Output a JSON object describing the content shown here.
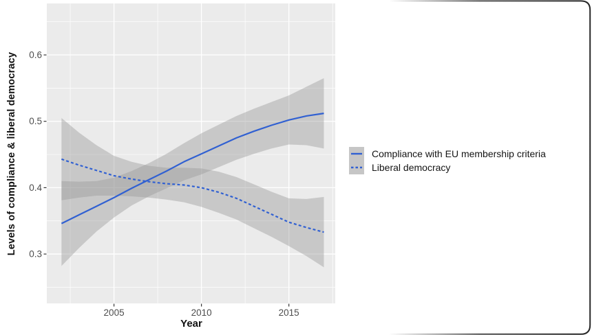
{
  "figure": {
    "background": "#ffffff",
    "border_color": "#1a1a1a"
  },
  "chart_data": {
    "type": "line",
    "title": "",
    "xlabel": "Year",
    "ylabel": "Levels of compliance & liberal democracy",
    "x_tick_labels": [
      "2005",
      "2010",
      "2015"
    ],
    "x_tick_values": [
      2005,
      2010,
      2015
    ],
    "y_tick_labels": [
      "0.6",
      "0.5",
      "0.4",
      "0.3"
    ],
    "y_tick_values": [
      0.6,
      0.5,
      0.4,
      0.3
    ],
    "xlim": [
      2001.16,
      2017.65
    ],
    "ylim": [
      0.2256,
      0.6776
    ],
    "grid": "major+minor",
    "legend_position": "right",
    "panel_bg": "#ebebeb",
    "grid_color": "#ffffff",
    "tick_color": "#333333",
    "tick_label_color": "#4d4d4d",
    "line_color": "#3060d2",
    "ribbon_color": "#999999",
    "ribbon_opacity": 0.42,
    "x": [
      2002,
      2003,
      2004,
      2005,
      2006,
      2007,
      2008,
      2009,
      2010,
      2011,
      2012,
      2013,
      2014,
      2015,
      2016,
      2017
    ],
    "series": [
      {
        "name": "Compliance with EU membership criteria",
        "line_style": "solid",
        "values": [
          0.346,
          0.359,
          0.372,
          0.385,
          0.399,
          0.412,
          0.425,
          0.439,
          0.451,
          0.463,
          0.475,
          0.485,
          0.494,
          0.502,
          0.508,
          0.512
        ],
        "ci_low": [
          0.282,
          0.309,
          0.334,
          0.355,
          0.373,
          0.387,
          0.399,
          0.411,
          0.42,
          0.431,
          0.442,
          0.451,
          0.459,
          0.465,
          0.464,
          0.459
        ],
        "ci_high": [
          0.41,
          0.409,
          0.41,
          0.415,
          0.425,
          0.437,
          0.451,
          0.467,
          0.482,
          0.495,
          0.508,
          0.519,
          0.529,
          0.539,
          0.552,
          0.565
        ]
      },
      {
        "name": "Liberal democracy",
        "line_style": "dashed",
        "values": [
          0.443,
          0.434,
          0.426,
          0.418,
          0.413,
          0.409,
          0.406,
          0.404,
          0.4,
          0.393,
          0.384,
          0.372,
          0.36,
          0.348,
          0.34,
          0.333
        ],
        "ci_low": [
          0.381,
          0.385,
          0.388,
          0.388,
          0.387,
          0.385,
          0.382,
          0.378,
          0.371,
          0.362,
          0.352,
          0.339,
          0.326,
          0.312,
          0.297,
          0.28
        ],
        "ci_high": [
          0.505,
          0.483,
          0.464,
          0.448,
          0.439,
          0.433,
          0.43,
          0.43,
          0.429,
          0.424,
          0.416,
          0.405,
          0.394,
          0.384,
          0.383,
          0.386
        ]
      }
    ]
  }
}
